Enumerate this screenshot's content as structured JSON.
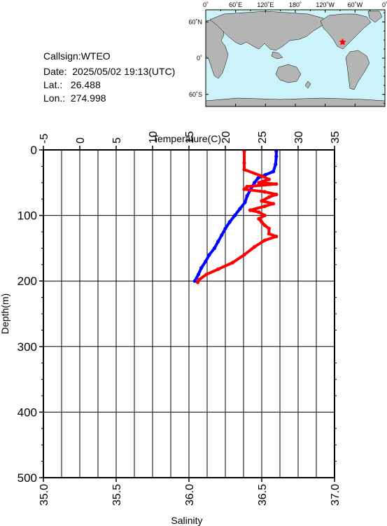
{
  "station": {
    "callsign_label": "Callsign:",
    "callsign": "WTEO",
    "date_label": "Date:",
    "date": "2025/05/02 19:13(UTC)",
    "lat_label": "Lat.:",
    "lat": "26.488",
    "lon_label": "Lon.:",
    "lon": "274.998"
  },
  "map": {
    "lon_ticks": [
      "0˚",
      "60˚E",
      "120˚E",
      "180˚",
      "120˚W",
      "60˚W",
      "0˚"
    ],
    "lat_ticks": [
      "60˚N",
      "0˚",
      "60˚S"
    ],
    "ocean_color": "#cdf3fa",
    "land_color": "#b4b4b4",
    "marker_color": "#ff0000",
    "marker_lat": 26.488,
    "marker_lon": 274.998
  },
  "chart_data": {
    "type": "line",
    "ylabel": "Depth(m)",
    "ylim": [
      0,
      500
    ],
    "yticks": [
      "0",
      "100",
      "200",
      "300",
      "400",
      "500"
    ],
    "y_inverted": true,
    "grid": true,
    "top_axis": {
      "label": "Temperature(C)",
      "lim": [
        -5,
        35
      ],
      "ticks": [
        "-5",
        "0",
        "5",
        "10",
        "15",
        "20",
        "25",
        "30",
        "35"
      ]
    },
    "bottom_axis": {
      "label": "Salinity",
      "lim": [
        35.0,
        37.0
      ],
      "ticks": [
        "35.0",
        "35.5",
        "36.0",
        "36.5",
        "37.0"
      ]
    },
    "series": [
      {
        "axis": "temperature",
        "color": "#0000ff",
        "points": [
          [
            27.0,
            2
          ],
          [
            27.0,
            10
          ],
          [
            26.9,
            22
          ],
          [
            26.6,
            33
          ],
          [
            25.5,
            38
          ],
          [
            24.5,
            43
          ],
          [
            24.0,
            50
          ],
          [
            23.5,
            60
          ],
          [
            23.0,
            70
          ],
          [
            22.7,
            80
          ],
          [
            22.0,
            90
          ],
          [
            21.3,
            100
          ],
          [
            20.6,
            110
          ],
          [
            20.0,
            120
          ],
          [
            19.5,
            130
          ],
          [
            19.0,
            140
          ],
          [
            18.5,
            150
          ],
          [
            17.8,
            160
          ],
          [
            17.3,
            170
          ],
          [
            16.7,
            180
          ],
          [
            16.3,
            190
          ],
          [
            15.8,
            200
          ]
        ]
      },
      {
        "axis": "salinity",
        "color": "#ff0000",
        "points": [
          [
            36.38,
            2
          ],
          [
            36.38,
            20
          ],
          [
            36.38,
            30
          ],
          [
            36.5,
            40
          ],
          [
            36.55,
            45
          ],
          [
            36.48,
            50
          ],
          [
            36.6,
            52
          ],
          [
            36.4,
            56
          ],
          [
            36.38,
            60
          ],
          [
            36.52,
            64
          ],
          [
            36.6,
            68
          ],
          [
            36.55,
            72
          ],
          [
            36.5,
            78
          ],
          [
            36.58,
            82
          ],
          [
            36.52,
            86
          ],
          [
            36.42,
            92
          ],
          [
            36.48,
            95
          ],
          [
            36.52,
            100
          ],
          [
            36.48,
            105
          ],
          [
            36.5,
            110
          ],
          [
            36.52,
            115
          ],
          [
            36.55,
            120
          ],
          [
            36.55,
            128
          ],
          [
            36.6,
            132
          ],
          [
            36.52,
            138
          ],
          [
            36.45,
            148
          ],
          [
            36.38,
            160
          ],
          [
            36.3,
            172
          ],
          [
            36.2,
            182
          ],
          [
            36.12,
            190
          ],
          [
            36.07,
            198
          ],
          [
            36.06,
            202
          ]
        ]
      }
    ]
  }
}
